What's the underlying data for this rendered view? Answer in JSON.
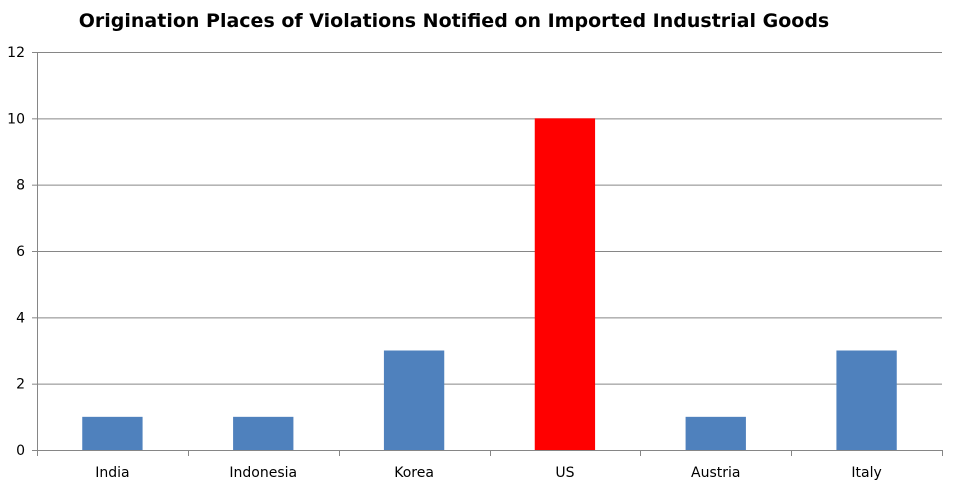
{
  "chart_data": {
    "type": "bar",
    "title": "Origination Places of Violations Notified on Imported Industrial Goods",
    "categories": [
      "India",
      "Indonesia",
      "Korea",
      "US",
      "Austria",
      "Italy"
    ],
    "values": [
      1,
      1,
      3,
      10,
      1,
      3
    ],
    "bar_colors": [
      "#4f81bd",
      "#4f81bd",
      "#4f81bd",
      "#ff0000",
      "#4f81bd",
      "#4f81bd"
    ],
    "xlabel": "",
    "ylabel": "",
    "ylim": [
      0,
      12
    ],
    "yticks": [
      0,
      2,
      4,
      6,
      8,
      10,
      12
    ],
    "grid": true,
    "legend": "none"
  },
  "colors": {
    "gridline": "#868686",
    "axis": "#868686",
    "text": "#000000"
  }
}
